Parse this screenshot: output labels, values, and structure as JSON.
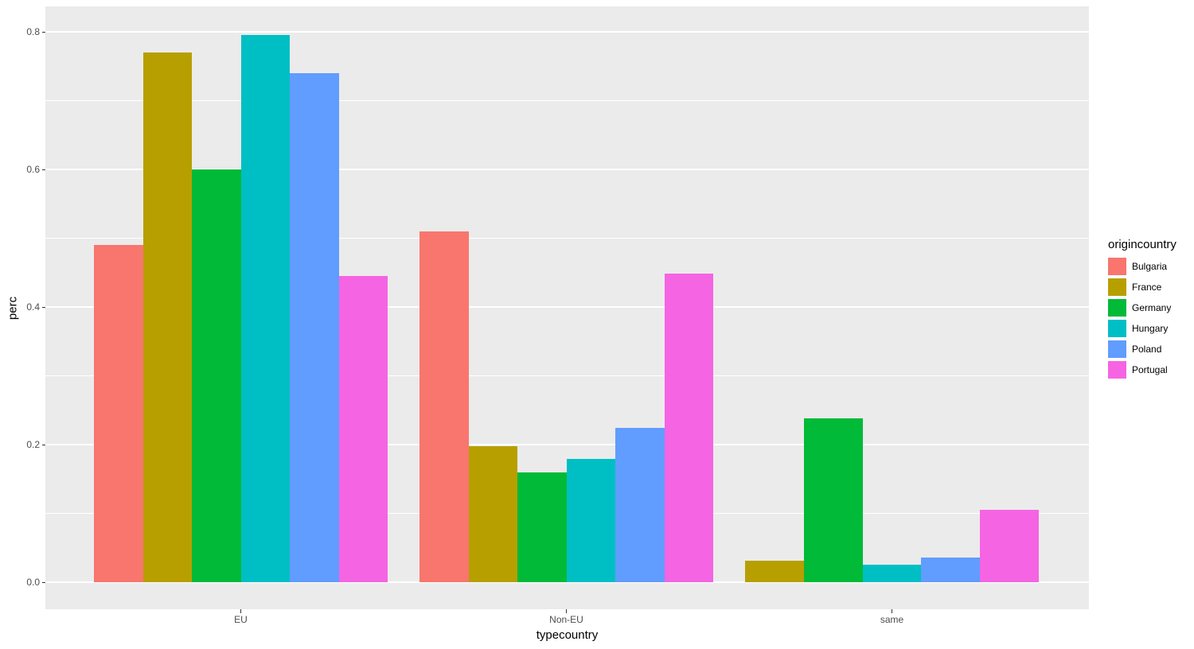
{
  "chart_data": {
    "type": "bar",
    "mode": "grouped-dodge",
    "title": "",
    "xlabel": "typecountry",
    "ylabel": "perc",
    "categories": [
      "EU",
      "Non-EU",
      "same"
    ],
    "series": [
      {
        "name": "Bulgaria",
        "color": "#F8766D",
        "values": [
          0.49,
          0.51,
          null
        ]
      },
      {
        "name": "France",
        "color": "#B79F00",
        "values": [
          0.77,
          0.198,
          0.031
        ]
      },
      {
        "name": "Germany",
        "color": "#00BA38",
        "values": [
          0.6,
          0.16,
          0.238
        ]
      },
      {
        "name": "Hungary",
        "color": "#00BFC4",
        "values": [
          0.795,
          0.179,
          0.025
        ]
      },
      {
        "name": "Poland",
        "color": "#619CFF",
        "values": [
          0.74,
          0.224,
          0.036
        ]
      },
      {
        "name": "Portugal",
        "color": "#F564E3",
        "values": [
          0.445,
          0.448,
          0.105
        ]
      }
    ],
    "legend_title": "origincountry",
    "legend_position": "right",
    "y_ticks": [
      0.0,
      0.2,
      0.4,
      0.6,
      0.8
    ],
    "y_tick_labels": [
      "0.0",
      "0.2",
      "0.4",
      "0.6",
      "0.8"
    ],
    "y_minor_ticks": [
      0.1,
      0.3,
      0.5,
      0.7
    ],
    "ylim": [
      0,
      0.84
    ],
    "grid": "on",
    "panel_bg": "#EBEBEB",
    "grid_color": "#FFFFFF"
  }
}
